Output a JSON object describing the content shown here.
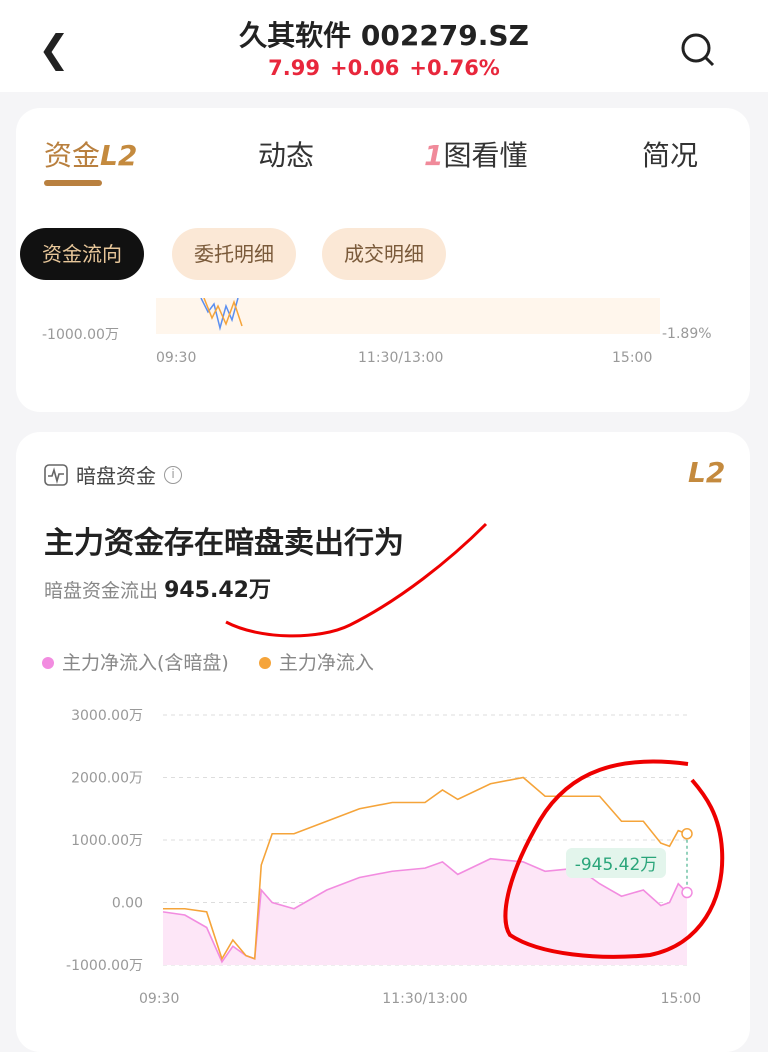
{
  "header": {
    "title": "久其软件 002279.SZ",
    "price": "7.99",
    "change": "+0.06",
    "change_pct": "+0.76%"
  },
  "tabs": [
    {
      "label": "资金",
      "badge": "L2"
    },
    {
      "label": "动态"
    },
    {
      "label": "图看懂",
      "badge": "1"
    },
    {
      "label": "简况"
    }
  ],
  "sub_tabs": [
    "资金流向",
    "委托明细",
    "成交明细"
  ],
  "top_chart": {
    "y_label": "-1000.00万",
    "right_label": "-1.89%",
    "x_ticks": [
      "09:30",
      "11:30/13:00",
      "15:00"
    ]
  },
  "dark_pool": {
    "section": "暗盘资金",
    "badge": "L2",
    "headline": "主力资金存在暗盘卖出行为",
    "outflow_label": "暗盘资金流出",
    "outflow_value": "945.42万"
  },
  "colors": {
    "accent": "#b9803f",
    "up": "#e8273c",
    "orange": "#f5a43a",
    "pink": "#f28ce0",
    "diff": "#2aa57a"
  },
  "chart_data": {
    "type": "line",
    "legend": [
      {
        "name": "主力净流入(含暗盘)",
        "color": "#f28ce0"
      },
      {
        "name": "主力净流入",
        "color": "#f5a43a"
      }
    ],
    "ylim": [
      -1000,
      3000
    ],
    "y_ticks": [
      "3000.00万",
      "2000.00万",
      "1000.00万",
      "0.00",
      "-1000.00万"
    ],
    "y_tick_values": [
      3000,
      2000,
      1000,
      0,
      -1000
    ],
    "x_ticks": [
      "09:30",
      "11:30/13:00",
      "15:00"
    ],
    "x_unit": "trading minutes since 09:30",
    "xlim": [
      0,
      240
    ],
    "series": [
      {
        "name": "主力净流入",
        "x": [
          0,
          10,
          20,
          27,
          32,
          38,
          42,
          45,
          50,
          60,
          75,
          90,
          105,
          120,
          128,
          135,
          150,
          165,
          175,
          190,
          200,
          210,
          220,
          228,
          232,
          236,
          240
        ],
        "values": [
          -100,
          -100,
          -150,
          -900,
          -600,
          -850,
          -900,
          600,
          1100,
          1100,
          1300,
          1500,
          1600,
          1600,
          1800,
          1650,
          1900,
          2000,
          1700,
          1700,
          1700,
          1300,
          1300,
          950,
          900,
          1150,
          1100
        ]
      },
      {
        "name": "主力净流入(含暗盘)",
        "x": [
          0,
          10,
          20,
          27,
          32,
          38,
          42,
          45,
          50,
          60,
          75,
          90,
          105,
          120,
          128,
          135,
          150,
          165,
          175,
          190,
          200,
          210,
          220,
          228,
          232,
          236,
          240
        ],
        "values": [
          -150,
          -200,
          -400,
          -950,
          -700,
          -850,
          -900,
          200,
          0,
          -100,
          200,
          400,
          500,
          550,
          650,
          450,
          700,
          650,
          500,
          550,
          300,
          100,
          200,
          -50,
          0,
          300,
          160
        ]
      }
    ],
    "annotation": "-945.42万",
    "grid": true
  }
}
